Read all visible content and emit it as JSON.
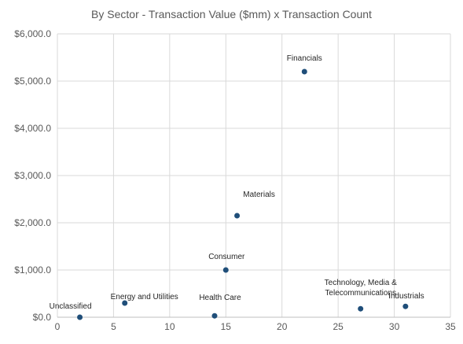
{
  "chart_data": {
    "type": "scatter",
    "title": "By Sector - Transaction Value ($mm) x Transaction Count",
    "xlabel": "",
    "ylabel": "",
    "xlim": [
      0,
      35
    ],
    "ylim": [
      0,
      6000
    ],
    "x_ticks": [
      "0",
      "5",
      "10",
      "15",
      "20",
      "25",
      "30",
      "35"
    ],
    "y_ticks": [
      "$0.0",
      "$1,000.0",
      "$2,000.0",
      "$3,000.0",
      "$4,000.0",
      "$5,000.0",
      "$6,000.0"
    ],
    "grid": true,
    "marker_color": "#1f4e79",
    "points": [
      {
        "label": "Unclassified",
        "x": 2,
        "y": 0
      },
      {
        "label": "Energy and Utilities",
        "x": 6,
        "y": 300
      },
      {
        "label": "Health Care",
        "x": 14,
        "y": 30
      },
      {
        "label": "Consumer",
        "x": 15,
        "y": 1000
      },
      {
        "label": "Materials",
        "x": 16,
        "y": 2150
      },
      {
        "label": "Financials",
        "x": 22,
        "y": 5200
      },
      {
        "label": "Technology, Media & Telecommunications",
        "label_lines": [
          "Technology, Media &",
          "Telecommunications"
        ],
        "x": 27,
        "y": 180
      },
      {
        "label": "Industrials",
        "x": 31,
        "y": 230
      }
    ]
  }
}
